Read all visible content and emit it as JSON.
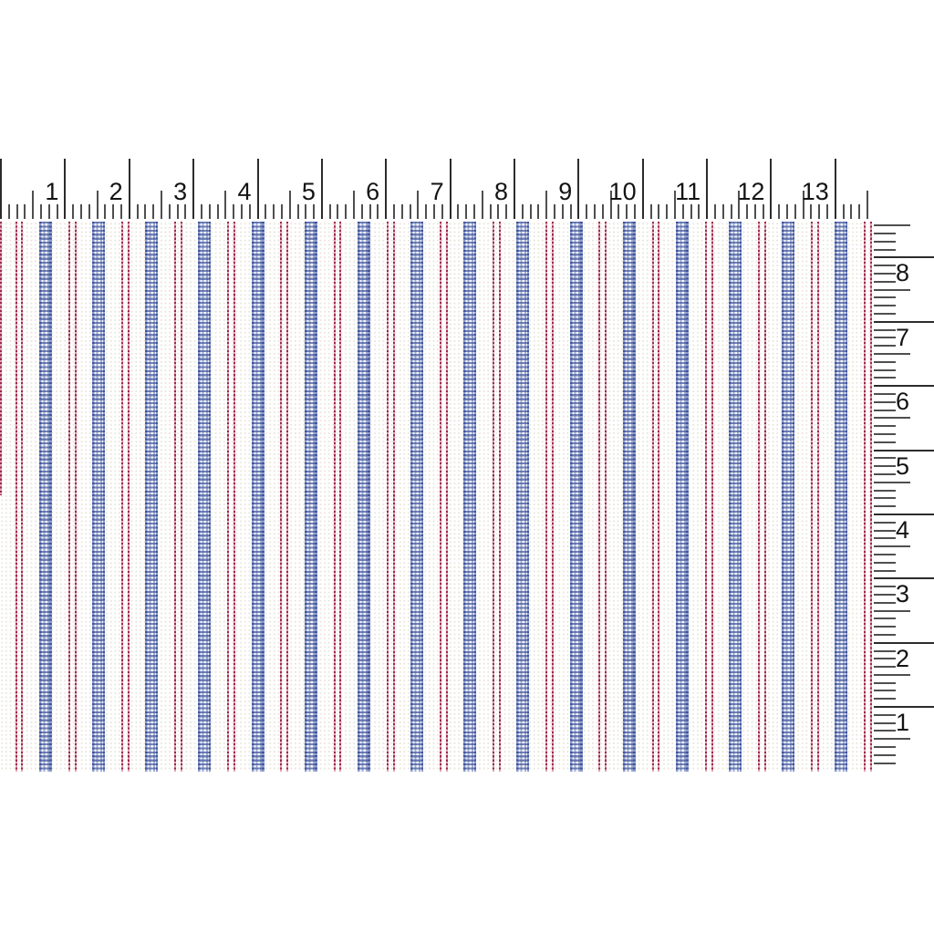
{
  "horizontal_ruler": {
    "unit": "inches",
    "numbers": [
      "1",
      "2",
      "3",
      "4",
      "5",
      "6",
      "7",
      "8",
      "9",
      "10",
      "11",
      "12",
      "13"
    ],
    "ticks_per_unit": 8
  },
  "vertical_ruler": {
    "unit": "inches",
    "numbers": [
      "8",
      "7",
      "6",
      "5",
      "4",
      "3",
      "2",
      "1"
    ],
    "ticks_per_unit": 8
  },
  "fabric": {
    "pattern": "alternating red dashed pin-stripes and blue woven gingham stripes on white ground",
    "red_stripe_count": 17,
    "blue_stripe_count": 16
  },
  "colors": {
    "background": "#ffffff",
    "ruler_tick": "#2c2c2c",
    "ruler_tick_minor": "#4f4f4f",
    "ruler_number": "#141414",
    "stripe_red_dark": "#a02648",
    "stripe_red_light": "#dfa6b8",
    "stripe_blue_dark": "#3f549c",
    "stripe_blue_mid": "#8b9bcb",
    "fabric_dot": "#e8e4da"
  }
}
